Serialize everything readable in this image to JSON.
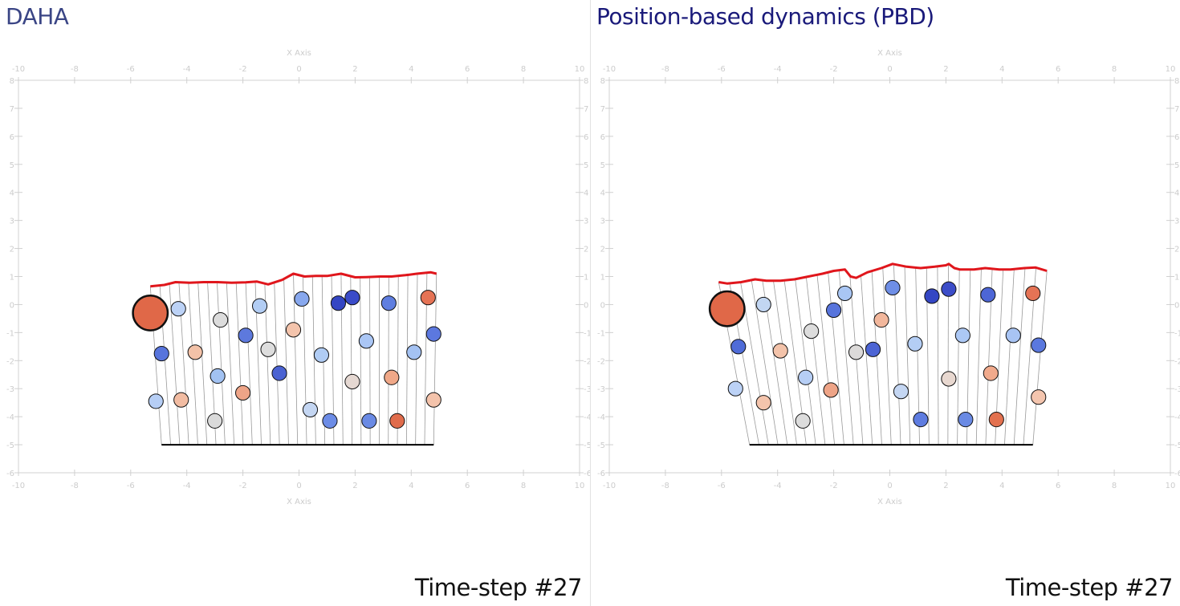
{
  "colors": {
    "left_title": "#3a4585",
    "right_title": "#1a1a7a",
    "axis": "#d0d0d0",
    "axis_label": "#cccccc",
    "surface_line": "#e0161c",
    "base_line": "#000000",
    "tether": "#9a9a9a"
  },
  "chart_data": [
    {
      "type": "scatter",
      "title": "DAHA",
      "footer": "Time-step #27",
      "xlabel": "X Axis",
      "xlim": [
        -10,
        10
      ],
      "ylim": [
        -6,
        8
      ],
      "x_ticks": [
        "-10",
        "-8",
        "-6",
        "-4",
        "-2",
        "0",
        "2",
        "4",
        "6",
        "8",
        "10"
      ],
      "y_ticks": [
        "-6",
        "-5",
        "-4",
        "-3",
        "-2",
        "-1",
        "0",
        "1",
        "2",
        "3",
        "4",
        "5",
        "6",
        "7",
        "8"
      ],
      "grid": false,
      "base": {
        "x": [
          -4.9,
          4.8
        ],
        "y": -5.0
      },
      "top_surface": {
        "x": [
          -5.3,
          -4.8,
          -4.4,
          -3.9,
          -3.4,
          -2.9,
          -2.4,
          -1.9,
          -1.5,
          -1.1,
          -0.6,
          -0.2,
          0.2,
          0.6,
          1.0,
          1.5,
          2.0,
          2.4,
          2.9,
          3.3,
          3.8,
          4.2,
          4.7,
          4.9
        ],
        "y": [
          0.65,
          0.7,
          0.8,
          0.78,
          0.8,
          0.8,
          0.78,
          0.79,
          0.82,
          0.72,
          0.88,
          1.1,
          1.0,
          1.02,
          1.02,
          1.1,
          0.97,
          0.98,
          1.0,
          1.0,
          1.05,
          1.1,
          1.15,
          1.1
        ]
      },
      "particles": {
        "x": [
          -5.3,
          -4.3,
          -2.8,
          -1.4,
          0.1,
          1.4,
          1.9,
          3.2,
          4.6,
          -4.9,
          -3.7,
          -1.9,
          -1.1,
          -0.2,
          0.8,
          2.4,
          4.1,
          4.8,
          -2.9,
          -0.7,
          1.9,
          3.3,
          -5.1,
          -4.2,
          -3.0,
          -2.0,
          0.4,
          1.1,
          2.5,
          3.5,
          4.8
        ],
        "y": [
          -0.3,
          -0.15,
          -0.55,
          -0.05,
          0.2,
          0.05,
          0.25,
          0.05,
          0.25,
          -1.75,
          -1.7,
          -1.1,
          -1.6,
          -0.9,
          -1.8,
          -1.3,
          -1.7,
          -1.05,
          -2.55,
          -2.45,
          -2.75,
          -2.6,
          -3.45,
          -3.4,
          -4.15,
          -3.15,
          -3.75,
          -4.15,
          -4.15,
          -4.15,
          -3.4
        ],
        "r": [
          0.62,
          0.26,
          0.26,
          0.26,
          0.26,
          0.26,
          0.26,
          0.26,
          0.26,
          0.26,
          0.26,
          0.26,
          0.26,
          0.26,
          0.26,
          0.26,
          0.26,
          0.26,
          0.26,
          0.26,
          0.26,
          0.26,
          0.26,
          0.26,
          0.26,
          0.26,
          0.26,
          0.26,
          0.26,
          0.26,
          0.26
        ],
        "color": [
          "#e06848",
          "#bcd2f6",
          "#dcdcdc",
          "#b2cdf4",
          "#88a8ee",
          "#3446c4",
          "#3a4bc8",
          "#5f7ee0",
          "#e57355",
          "#5774dc",
          "#f3c2a8",
          "#5d79dd",
          "#dddddd",
          "#f4c4ac",
          "#b0ccf4",
          "#aac6f5",
          "#a4c2f3",
          "#5c78df",
          "#a2c2f2",
          "#4a62d2",
          "#e5d8d2",
          "#f0a888",
          "#b6cef5",
          "#f2bca2",
          "#dadada",
          "#eea487",
          "#c4d6f2",
          "#6c8ce6",
          "#6a8ae4",
          "#e06c4c",
          "#f4c3ab"
        ]
      }
    },
    {
      "type": "scatter",
      "title": "Position-based dynamics (PBD)",
      "footer": "Time-step #27",
      "xlabel": "X Axis",
      "xlim": [
        -10,
        10
      ],
      "ylim": [
        -6,
        8
      ],
      "x_ticks": [
        "-10",
        "-8",
        "-6",
        "-4",
        "-2",
        "0",
        "2",
        "4",
        "6",
        "8",
        "10"
      ],
      "y_ticks": [
        "-6",
        "-5",
        "-4",
        "-3",
        "-2",
        "-1",
        "0",
        "1",
        "2",
        "3",
        "4",
        "5",
        "6",
        "7",
        "8"
      ],
      "grid": false,
      "base": {
        "x": [
          -5.0,
          5.1
        ],
        "y": -5.0
      },
      "top_surface": {
        "x": [
          -6.1,
          -5.8,
          -5.3,
          -4.8,
          -4.4,
          -3.9,
          -3.4,
          -2.9,
          -2.4,
          -2.0,
          -1.6,
          -1.4,
          -1.2,
          -0.8,
          -0.3,
          0.1,
          0.6,
          1.1,
          1.6,
          2.0,
          2.1,
          2.3,
          2.5,
          3.0,
          3.4,
          3.9,
          4.3,
          4.8,
          5.2,
          5.6
        ],
        "y": [
          0.8,
          0.75,
          0.8,
          0.9,
          0.85,
          0.85,
          0.9,
          1.0,
          1.1,
          1.2,
          1.25,
          1.0,
          0.95,
          1.15,
          1.3,
          1.45,
          1.35,
          1.3,
          1.35,
          1.4,
          1.45,
          1.3,
          1.25,
          1.25,
          1.3,
          1.25,
          1.25,
          1.3,
          1.32,
          1.2
        ]
      },
      "particles": {
        "x": [
          -5.8,
          -4.5,
          -2.0,
          -1.6,
          0.1,
          1.5,
          2.1,
          3.5,
          5.1,
          -5.4,
          -3.9,
          -2.8,
          -1.2,
          -0.6,
          -0.3,
          0.9,
          2.6,
          4.4,
          5.3,
          -3.0,
          2.1,
          3.6,
          -5.5,
          -4.5,
          -3.1,
          -2.1,
          0.4,
          1.1,
          2.7,
          3.8,
          5.3
        ],
        "y": [
          -0.15,
          0.0,
          -0.2,
          0.4,
          0.6,
          0.3,
          0.55,
          0.35,
          0.4,
          -1.5,
          -1.65,
          -0.95,
          -1.7,
          -1.6,
          -0.55,
          -1.4,
          -1.1,
          -1.1,
          -1.45,
          -2.6,
          -2.65,
          -2.45,
          -3.0,
          -3.5,
          -4.15,
          -3.05,
          -3.1,
          -4.1,
          -4.1,
          -4.1,
          -3.3
        ],
        "r": [
          0.62,
          0.26,
          0.26,
          0.26,
          0.26,
          0.26,
          0.26,
          0.26,
          0.26,
          0.26,
          0.26,
          0.26,
          0.26,
          0.26,
          0.26,
          0.26,
          0.26,
          0.26,
          0.26,
          0.26,
          0.26,
          0.26,
          0.26,
          0.26,
          0.26,
          0.26,
          0.26,
          0.26,
          0.26,
          0.26,
          0.26
        ],
        "color": [
          "#e06848",
          "#c2d6f2",
          "#5774dc",
          "#a9c6f4",
          "#6e8ee6",
          "#3446c4",
          "#3c4dc8",
          "#4d66d6",
          "#e57355",
          "#4f6cd8",
          "#f3c3aa",
          "#dddddd",
          "#dcdad9",
          "#4c64d4",
          "#f2b79c",
          "#b4cef5",
          "#acc8f5",
          "#a8c4f4",
          "#5a78de",
          "#b6cef5",
          "#e8d8d0",
          "#f1aa8c",
          "#bcd2f6",
          "#f4c4ac",
          "#dcdcdc",
          "#eea487",
          "#c4d6f2",
          "#5e7ce0",
          "#6a8ae4",
          "#e3714f",
          "#f4c5ae"
        ]
      }
    }
  ]
}
